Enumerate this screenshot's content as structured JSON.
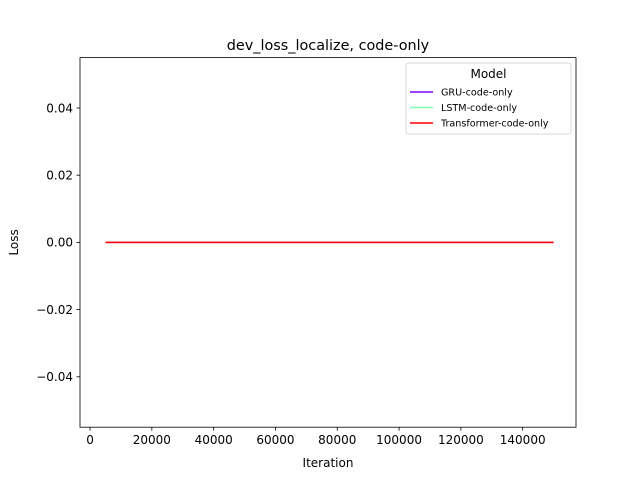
{
  "chart_data": {
    "type": "line",
    "title": "dev_loss_localize, code-only",
    "xlabel": "Iteration",
    "ylabel": "Loss",
    "xlim": [
      -3250,
      157250
    ],
    "ylim": [
      -0.055,
      0.055
    ],
    "xticks": [
      0,
      20000,
      40000,
      60000,
      80000,
      100000,
      120000,
      140000
    ],
    "xtick_labels": [
      "0",
      "20000",
      "40000",
      "60000",
      "80000",
      "100000",
      "120000",
      "140000"
    ],
    "yticks": [
      -0.04,
      -0.02,
      0.0,
      0.02,
      0.04
    ],
    "ytick_labels": [
      "−0.04",
      "−0.02",
      "0.00",
      "0.02",
      "0.04"
    ],
    "grid": false,
    "legend": {
      "title": "Model",
      "placement": "top-right"
    },
    "series": [
      {
        "name": "GRU-code-only",
        "color": "#8000ff",
        "x": [
          5000,
          150000
        ],
        "y": [
          0,
          0
        ]
      },
      {
        "name": "LSTM-code-only",
        "color": "#80ffb4",
        "x": [
          5000,
          150000
        ],
        "y": [
          0,
          0
        ]
      },
      {
        "name": "Transformer-code-only",
        "color": "#ff0000",
        "x": [
          5000,
          150000
        ],
        "y": [
          0,
          0
        ]
      }
    ]
  }
}
